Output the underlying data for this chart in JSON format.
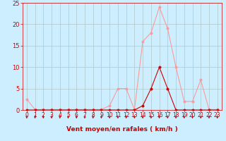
{
  "x": [
    0,
    1,
    2,
    3,
    4,
    5,
    6,
    7,
    8,
    9,
    10,
    11,
    12,
    13,
    14,
    15,
    16,
    17,
    18,
    19,
    20,
    21,
    22,
    23
  ],
  "rafales": [
    2.5,
    0.1,
    0.1,
    0.1,
    0.1,
    0.1,
    0.1,
    0.1,
    0.1,
    0.1,
    1.0,
    5.0,
    5.0,
    0.1,
    16.0,
    18.0,
    24.0,
    19.0,
    10.0,
    2.0,
    2.0,
    7.0,
    0.1,
    0.1
  ],
  "moyen": [
    0.0,
    0.0,
    0.0,
    0.0,
    0.0,
    0.0,
    0.0,
    0.0,
    0.0,
    0.0,
    0.0,
    0.0,
    0.0,
    0.0,
    1.0,
    5.0,
    10.0,
    5.0,
    0.0,
    0.0,
    0.0,
    0.0,
    0.0,
    0.0
  ],
  "color_rafales": "#ff9999",
  "color_moyen": "#cc0000",
  "bg_color": "#cceeff",
  "grid_color": "#b0c8c8",
  "xlabel": "Vent moyen/en rafales ( km/h )",
  "ylim": [
    0,
    25
  ],
  "yticks": [
    0,
    5,
    10,
    15,
    20,
    25
  ],
  "xticks": [
    0,
    1,
    2,
    3,
    4,
    5,
    6,
    7,
    8,
    9,
    10,
    11,
    12,
    13,
    14,
    15,
    16,
    17,
    18,
    19,
    20,
    21,
    22,
    23
  ],
  "marker_size": 2.5,
  "linewidth": 0.8,
  "arrow_color": "#cc0000",
  "tick_color": "#cc0000",
  "label_fontsize": 5.5,
  "xlabel_fontsize": 6.5
}
